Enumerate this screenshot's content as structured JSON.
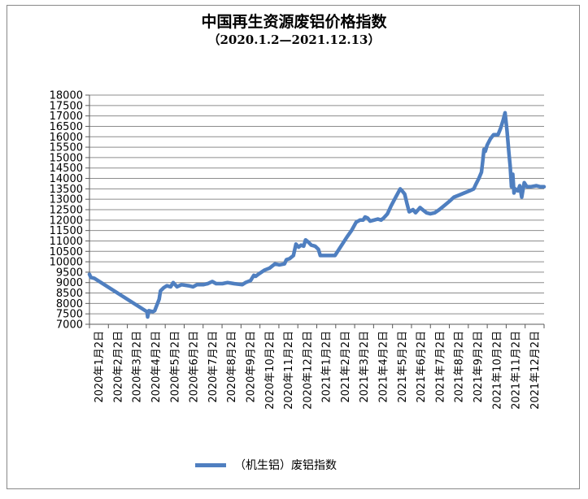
{
  "chart_data": {
    "type": "line",
    "title": "中国再生资源废铝价格指数",
    "subtitle": "（2020.1.2—2021.12.13）",
    "ylim": [
      7000,
      18000
    ],
    "y_ticks": [
      7000,
      7500,
      8000,
      8500,
      9000,
      9500,
      10000,
      10500,
      11000,
      11500,
      12000,
      12500,
      13000,
      13500,
      14000,
      14500,
      15000,
      15500,
      16000,
      16500,
      17000,
      17500,
      18000
    ],
    "x_tick_labels": [
      "2020年1月2日",
      "2020年2月2日",
      "2020年3月2日",
      "2020年4月2日",
      "2020年5月2日",
      "2020年6月2日",
      "2020年7月2日",
      "2020年8月2日",
      "2020年9月2日",
      "2020年10月2日",
      "2020年11月2日",
      "2020年12月2日",
      "2021年1月2日",
      "2021年2月2日",
      "2021年3月2日",
      "2021年4月2日",
      "2021年5月2日",
      "2021年6月2日",
      "2021年7月2日",
      "2021年8月2日",
      "2021年9月2日",
      "2021年10月2日",
      "2021年11月2日",
      "2021年12月2日"
    ],
    "grid": true,
    "legend_position": "bottom",
    "series": [
      {
        "name": "（机生铝）废铝指数",
        "color": "#4F7FC0",
        "points": [
          [
            "2020-01-02",
            9400
          ],
          [
            "2020-01-04",
            9250
          ],
          [
            "2020-01-10",
            9200
          ],
          [
            "2020-04-01",
            7600
          ],
          [
            "2020-04-02",
            7350
          ],
          [
            "2020-04-04",
            7650
          ],
          [
            "2020-04-10",
            7600
          ],
          [
            "2020-04-13",
            7650
          ],
          [
            "2020-04-20",
            8200
          ],
          [
            "2020-04-22",
            8600
          ],
          [
            "2020-04-27",
            8750
          ],
          [
            "2020-05-02",
            8850
          ],
          [
            "2020-05-08",
            8800
          ],
          [
            "2020-05-12",
            9000
          ],
          [
            "2020-05-18",
            8800
          ],
          [
            "2020-05-25",
            8900
          ],
          [
            "2020-06-05",
            8850
          ],
          [
            "2020-06-12",
            8800
          ],
          [
            "2020-06-18",
            8900
          ],
          [
            "2020-06-28",
            8900
          ],
          [
            "2020-07-05",
            8950
          ],
          [
            "2020-07-12",
            9050
          ],
          [
            "2020-07-18",
            8950
          ],
          [
            "2020-07-28",
            8950
          ],
          [
            "2020-08-05",
            9000
          ],
          [
            "2020-08-15",
            8950
          ],
          [
            "2020-08-28",
            8900
          ],
          [
            "2020-09-02",
            9000
          ],
          [
            "2020-09-10",
            9100
          ],
          [
            "2020-09-15",
            9350
          ],
          [
            "2020-09-18",
            9300
          ],
          [
            "2020-09-22",
            9400
          ],
          [
            "2020-10-02",
            9600
          ],
          [
            "2020-10-10",
            9700
          ],
          [
            "2020-10-18",
            9900
          ],
          [
            "2020-10-25",
            9850
          ],
          [
            "2020-11-02",
            9900
          ],
          [
            "2020-11-05",
            10100
          ],
          [
            "2020-11-10",
            10150
          ],
          [
            "2020-11-16",
            10300
          ],
          [
            "2020-11-20",
            10850
          ],
          [
            "2020-11-24",
            10700
          ],
          [
            "2020-11-28",
            10800
          ],
          [
            "2020-12-02",
            10750
          ],
          [
            "2020-12-05",
            11050
          ],
          [
            "2020-12-09",
            10950
          ],
          [
            "2020-12-14",
            10800
          ],
          [
            "2020-12-20",
            10750
          ],
          [
            "2020-12-25",
            10600
          ],
          [
            "2020-12-28",
            10300
          ],
          [
            "2021-01-10",
            10300
          ],
          [
            "2021-01-20",
            10300
          ],
          [
            "2021-02-08",
            11200
          ],
          [
            "2021-02-15",
            11500
          ],
          [
            "2021-02-22",
            11900
          ],
          [
            "2021-02-28",
            12000
          ],
          [
            "2021-03-05",
            12000
          ],
          [
            "2021-03-08",
            12150
          ],
          [
            "2021-03-12",
            12100
          ],
          [
            "2021-03-16",
            11950
          ],
          [
            "2021-03-22",
            12000
          ],
          [
            "2021-03-28",
            12050
          ],
          [
            "2021-04-02",
            12000
          ],
          [
            "2021-04-06",
            12100
          ],
          [
            "2021-04-12",
            12300
          ],
          [
            "2021-04-18",
            12700
          ],
          [
            "2021-04-25",
            13100
          ],
          [
            "2021-05-02",
            13500
          ],
          [
            "2021-05-05",
            13400
          ],
          [
            "2021-05-09",
            13250
          ],
          [
            "2021-05-13",
            12750
          ],
          [
            "2021-05-16",
            12400
          ],
          [
            "2021-05-22",
            12500
          ],
          [
            "2021-05-26",
            12350
          ],
          [
            "2021-06-02",
            12600
          ],
          [
            "2021-06-06",
            12500
          ],
          [
            "2021-06-12",
            12350
          ],
          [
            "2021-06-18",
            12300
          ],
          [
            "2021-06-25",
            12350
          ],
          [
            "2021-07-02",
            12500
          ],
          [
            "2021-07-10",
            12700
          ],
          [
            "2021-07-18",
            12900
          ],
          [
            "2021-07-25",
            13100
          ],
          [
            "2021-08-02",
            13200
          ],
          [
            "2021-08-10",
            13300
          ],
          [
            "2021-08-18",
            13400
          ],
          [
            "2021-08-25",
            13500
          ],
          [
            "2021-08-28",
            13700
          ],
          [
            "2021-09-02",
            14000
          ],
          [
            "2021-09-06",
            14300
          ],
          [
            "2021-09-08",
            14800
          ],
          [
            "2021-09-10",
            15400
          ],
          [
            "2021-09-12",
            15300
          ],
          [
            "2021-09-15",
            15600
          ],
          [
            "2021-09-20",
            15900
          ],
          [
            "2021-09-25",
            16100
          ],
          [
            "2021-10-02",
            16100
          ],
          [
            "2021-10-06",
            16400
          ],
          [
            "2021-10-10",
            16800
          ],
          [
            "2021-10-13",
            17150
          ],
          [
            "2021-10-16",
            16300
          ],
          [
            "2021-10-19",
            15200
          ],
          [
            "2021-10-21",
            14600
          ],
          [
            "2021-10-23",
            13600
          ],
          [
            "2021-10-25",
            14200
          ],
          [
            "2021-10-27",
            13300
          ],
          [
            "2021-10-29",
            13500
          ],
          [
            "2021-11-02",
            13400
          ],
          [
            "2021-11-05",
            13650
          ],
          [
            "2021-11-08",
            13100
          ],
          [
            "2021-11-12",
            13800
          ],
          [
            "2021-11-16",
            13600
          ],
          [
            "2021-11-22",
            13600
          ],
          [
            "2021-12-01",
            13650
          ],
          [
            "2021-12-07",
            13600
          ],
          [
            "2021-12-13",
            13600
          ]
        ]
      }
    ]
  }
}
